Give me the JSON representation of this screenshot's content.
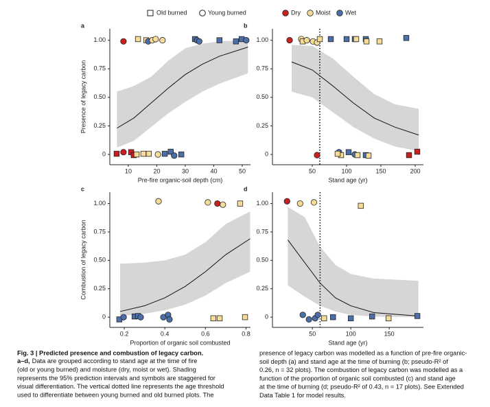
{
  "legend": {
    "groups": [
      {
        "name": "Old burned",
        "shape": "square"
      },
      {
        "name": "Young burned",
        "shape": "circle"
      }
    ],
    "moisture": [
      {
        "name": "Dry",
        "color": "#c8201f"
      },
      {
        "name": "Moist",
        "color": "#f6dc97"
      },
      {
        "name": "Wet",
        "color": "#4b6fa8"
      }
    ]
  },
  "chart_data": [
    {
      "type": "scatter",
      "label": "a",
      "xlabel": "Pre-fire organic-soil depth (cm)",
      "ylabel": "Presence of legacy carbon",
      "xlim": [
        3.5,
        52.9
      ],
      "ylim": [
        -0.09,
        1.1
      ],
      "xticks": [
        10,
        20,
        30,
        40,
        50
      ],
      "yticks": [
        0,
        0.25,
        {
          "value": 0.5,
          "label": "0.50"
        },
        0.75,
        {
          "value": 1,
          "label": "1.00"
        }
      ],
      "fit": {
        "x": [
          6,
          12,
          18,
          24,
          30,
          36,
          42,
          52
        ],
        "y": [
          0.23,
          0.32,
          0.45,
          0.58,
          0.7,
          0.79,
          0.86,
          0.94
        ],
        "lower": [
          0.06,
          0.12,
          0.24,
          0.36,
          0.46,
          0.55,
          0.62,
          0.71
        ],
        "upper": [
          0.55,
          0.6,
          0.68,
          0.82,
          0.93,
          0.97,
          0.99,
          1.0
        ]
      },
      "points": {
        "x": [
          8.3,
          13.4,
          16.3,
          17.0,
          18.4,
          19.6,
          22.0,
          33.4,
          34.1,
          34.9,
          42.0,
          47.8,
          49.8,
          51.4,
          5.9,
          8.3,
          11.0,
          11.9,
          12.9,
          15.3,
          17.2,
          20.4,
          22.8,
          24.9,
          26.1,
          28.6
        ],
        "y": [
          0.99,
          1.01,
          1.0,
          0.99,
          1.0,
          1.01,
          1.0,
          1.01,
          1.0,
          0.99,
          1.0,
          0.99,
          1.01,
          1.0,
          0.006,
          0.02,
          0.02,
          -0.006,
          0,
          0.006,
          0.006,
          0,
          0.006,
          0.024,
          -0.01,
          0
        ],
        "group": [
          1,
          0,
          0,
          1,
          1,
          1,
          1,
          0,
          1,
          1,
          0,
          0,
          0,
          1,
          0,
          1,
          0,
          0,
          0,
          0,
          0,
          1,
          0,
          0,
          1,
          0
        ],
        "moisture": [
          0,
          1,
          1,
          2,
          1,
          1,
          1,
          2,
          2,
          2,
          2,
          2,
          2,
          2,
          0,
          0,
          0,
          0,
          1,
          1,
          1,
          1,
          2,
          2,
          2,
          2
        ]
      }
    },
    {
      "type": "scatter",
      "label": "b",
      "xlabel": "Stand age (yr)",
      "xlim": [
        -8,
        212
      ],
      "ylim": [
        -0.09,
        1.1
      ],
      "xticks": [
        50,
        100,
        150,
        200
      ],
      "yticks": [
        0,
        0.25,
        {
          "value": 0.5,
          "label": "0.50"
        },
        0.75,
        {
          "value": 1,
          "label": "1.00"
        }
      ],
      "threshold": 61,
      "fit": {
        "x": [
          20,
          50,
          80,
          110,
          140,
          170,
          205
        ],
        "y": [
          0.81,
          0.74,
          0.6,
          0.45,
          0.32,
          0.24,
          0.17
        ],
        "lower": [
          0.55,
          0.5,
          0.37,
          0.24,
          0.14,
          0.07,
          0.03
        ],
        "upper": [
          0.96,
          0.95,
          0.84,
          0.68,
          0.53,
          0.44,
          0.4
        ]
      },
      "points": {
        "x": [
          17,
          34,
          36,
          42,
          51,
          57,
          61,
          77,
          100,
          112,
          114,
          128,
          129,
          148,
          187,
          57,
          89,
          92,
          87,
          103,
          112,
          116,
          128,
          132,
          191,
          203
        ],
        "y": [
          1.0,
          1.01,
          0.99,
          1.0,
          0.99,
          0.98,
          1.01,
          1.01,
          1.01,
          1.01,
          1.01,
          1.01,
          0.99,
          0.99,
          1.02,
          -0.006,
          0.02,
          -0.006,
          0.006,
          0.02,
          0,
          -0.006,
          -0.006,
          -0.01,
          -0.006,
          0.024
        ],
        "group": [
          1,
          1,
          0,
          1,
          1,
          1,
          0,
          0,
          0,
          0,
          0,
          0,
          0,
          0,
          0,
          1,
          1,
          0,
          0,
          0,
          1,
          0,
          0,
          0,
          0,
          0
        ],
        "moisture": [
          0,
          1,
          1,
          1,
          1,
          1,
          1,
          2,
          2,
          2,
          1,
          2,
          1,
          1,
          2,
          0,
          2,
          1,
          1,
          2,
          2,
          1,
          2,
          1,
          0,
          0
        ]
      }
    },
    {
      "type": "scatter",
      "label": "c",
      "xlabel": "Proportion of organic soil combusted",
      "ylabel": "Combustion of legacy carbon",
      "xlim": [
        0.129,
        0.822
      ],
      "ylim": [
        -0.09,
        1.1
      ],
      "xticks": [
        0.2,
        0.4,
        0.6,
        0.8
      ],
      "yticks": [
        0,
        0.25,
        {
          "value": 0.5,
          "label": "0.50"
        },
        0.75,
        {
          "value": 1,
          "label": "1.00"
        }
      ],
      "fit": {
        "x": [
          0.18,
          0.3,
          0.4,
          0.5,
          0.6,
          0.7,
          0.82
        ],
        "y": [
          0.05,
          0.1,
          0.17,
          0.27,
          0.4,
          0.55,
          0.69
        ],
        "lower": [
          0.01,
          0.03,
          0.06,
          0.11,
          0.19,
          0.3,
          0.4
        ],
        "upper": [
          0.47,
          0.48,
          0.5,
          0.55,
          0.66,
          0.82,
          0.93
        ]
      },
      "points": {
        "x": [
          0.369,
          0.612,
          0.659,
          0.686,
          0.771,
          0.176,
          0.197,
          0.251,
          0.268,
          0.281,
          0.393,
          0.416,
          0.423,
          0.639,
          0.67,
          0.795
        ],
        "y": [
          1.02,
          1.01,
          1.0,
          0.99,
          1.0,
          -0.02,
          0,
          0.006,
          0.01,
          0,
          0,
          0.02,
          -0.02,
          -0.01,
          -0.01,
          0
        ],
        "group": [
          1,
          1,
          1,
          1,
          0,
          0,
          1,
          0,
          0,
          1,
          1,
          1,
          1,
          0,
          0,
          0
        ],
        "moisture": [
          1,
          1,
          0,
          1,
          1,
          2,
          2,
          2,
          2,
          2,
          2,
          2,
          2,
          1,
          1,
          1
        ]
      }
    },
    {
      "type": "scatter",
      "label": "d",
      "xlabel": "Stand age (yr)",
      "xlim": [
        -2,
        194.5
      ],
      "ylim": [
        -0.09,
        1.1
      ],
      "xticks": [
        50,
        100,
        150
      ],
      "yticks": [
        0,
        0.25,
        {
          "value": 0.5,
          "label": "0.50"
        },
        0.75,
        {
          "value": 1,
          "label": "1.00"
        }
      ],
      "threshold": 60,
      "fit": {
        "x": [
          18,
          40,
          60,
          80,
          100,
          130,
          188
        ],
        "y": [
          0.68,
          0.48,
          0.3,
          0.17,
          0.1,
          0.04,
          0.01
        ],
        "lower": [
          0.28,
          0.18,
          0.1,
          0.05,
          0.02,
          0.005,
          0
        ],
        "upper": [
          0.97,
          0.88,
          0.62,
          0.46,
          0.38,
          0.34,
          0.32
        ]
      },
      "points": {
        "x": [
          17,
          34,
          52,
          113,
          37.5,
          45.5,
          53.6,
          57.1,
          65.2,
          76.8,
          100,
          127.7,
          149.1,
          186.6
        ],
        "y": [
          1.02,
          1.0,
          1.01,
          0.98,
          0.02,
          -0.02,
          -0.01,
          0.02,
          -0.01,
          0,
          -0.01,
          0.006,
          -0.01,
          0.01
        ],
        "group": [
          1,
          1,
          1,
          0,
          1,
          1,
          1,
          1,
          0,
          0,
          0,
          0,
          0,
          0
        ],
        "moisture": [
          0,
          1,
          1,
          1,
          2,
          2,
          2,
          2,
          1,
          2,
          2,
          2,
          1,
          2
        ]
      }
    }
  ],
  "caption": {
    "left": {
      "title": "Fig. 3 | Predicted presence and combustion of legacy carbon.",
      "label": "a–d,",
      "first": "Data are grouped according to stand age at the time of fire",
      "lines": [
        "(old or young burned) and moisture (dry, moist or wet). Shading",
        "represents the 95% prediction intervals and symbols are staggered for",
        "visual differentiation. The vertical dotted line represents the age threshold",
        "used to differentiate between young burned and old burned plots. The"
      ]
    },
    "right": {
      "lines": [
        "presence of legacy carbon was modelled as a function of pre-fire organic-",
        "soil depth (a) and stand age at the time of burning (b; pseudo-R² of",
        "0.26, n = 32 plots). The combustion of legacy carbon was modelled as a",
        "function of the proportion of organic soil combusted (c) and stand age",
        "at the time of burning (d; pseudo-R² of 0.43, n = 17 plots). See Extended",
        "Data Table 1 for model results."
      ]
    }
  }
}
